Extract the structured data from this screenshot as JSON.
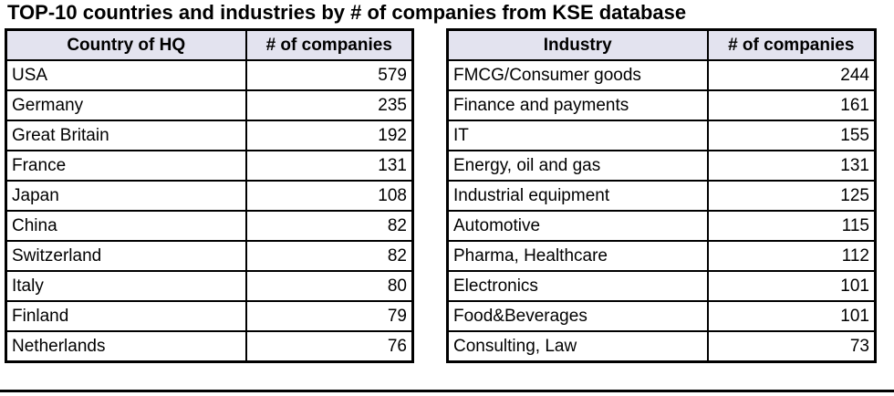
{
  "title": "TOP-10 countries and industries by # of companies from KSE database",
  "colors": {
    "header_bg": "#e3e3ef",
    "border": "#000000",
    "text": "#000000",
    "background": "#ffffff"
  },
  "chart_data": [
    {
      "type": "table",
      "title": "TOP-10 countries by # of companies from KSE database",
      "columns": [
        "Country of HQ",
        "# of companies"
      ],
      "rows": [
        [
          "USA",
          579
        ],
        [
          "Germany",
          235
        ],
        [
          "Great Britain",
          192
        ],
        [
          "France",
          131
        ],
        [
          "Japan",
          108
        ],
        [
          "China",
          82
        ],
        [
          "Switzerland",
          82
        ],
        [
          "Italy",
          80
        ],
        [
          "Finland",
          79
        ],
        [
          "Netherlands",
          76
        ]
      ]
    },
    {
      "type": "table",
      "title": "TOP-10 industries by # of companies from KSE database",
      "columns": [
        "Industry",
        "# of companies"
      ],
      "rows": [
        [
          "FMCG/Consumer goods",
          244
        ],
        [
          "Finance and payments",
          161
        ],
        [
          "IT",
          155
        ],
        [
          "Energy, oil and gas",
          131
        ],
        [
          "Industrial equipment",
          125
        ],
        [
          "Automotive",
          115
        ],
        [
          "Pharma, Healthcare",
          112
        ],
        [
          "Electronics",
          101
        ],
        [
          "Food&Beverages",
          101
        ],
        [
          "Consulting, Law",
          73
        ]
      ]
    }
  ]
}
